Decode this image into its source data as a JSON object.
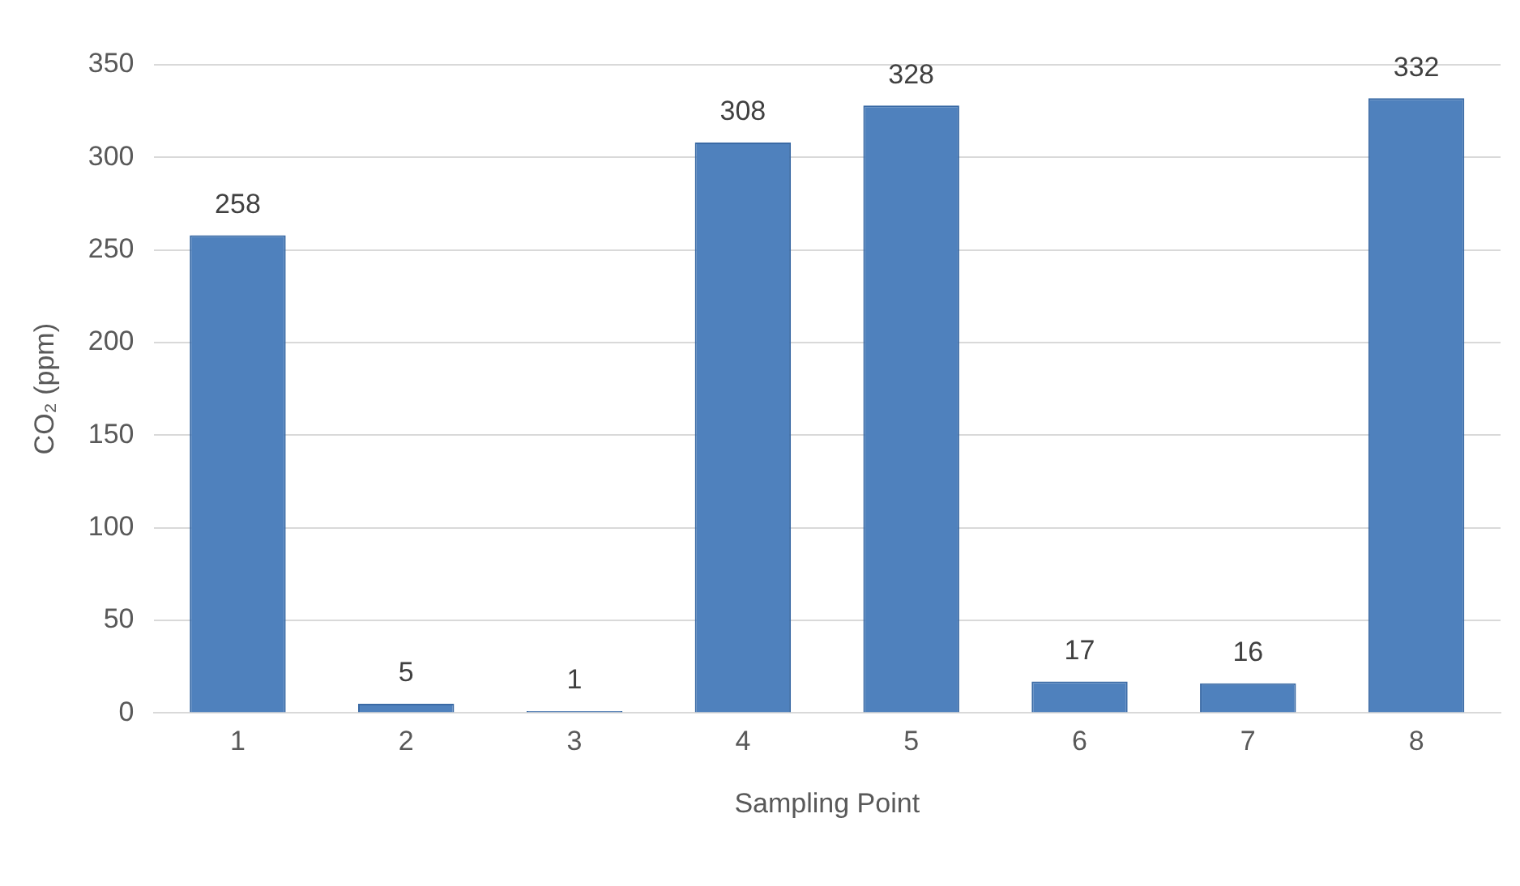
{
  "chart_data": {
    "type": "bar",
    "xlabel": "Sampling Point",
    "ylabel": "CO₂ (ppm)",
    "categories": [
      "1",
      "2",
      "3",
      "4",
      "5",
      "6",
      "7",
      "8"
    ],
    "values": [
      258,
      5,
      1,
      308,
      328,
      17,
      16,
      332
    ],
    "color": "#4f81bd",
    "ylim": [
      0,
      350
    ],
    "yticks": [
      0,
      50,
      100,
      150,
      200,
      250,
      300,
      350
    ],
    "grid": "y",
    "data_labels": true,
    "legend": false
  }
}
